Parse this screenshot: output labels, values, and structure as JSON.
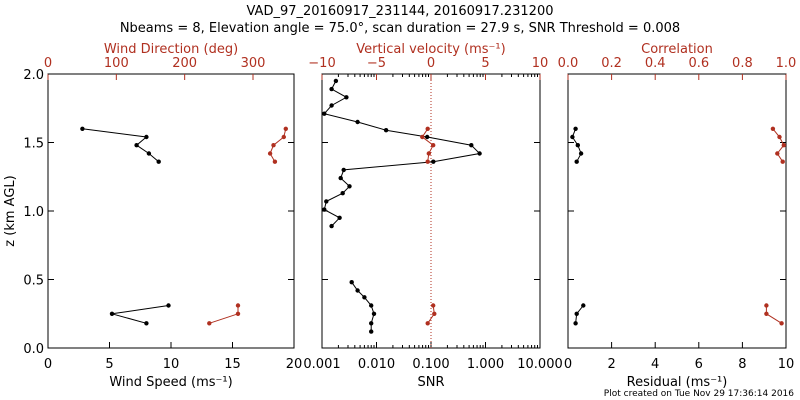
{
  "header": {
    "title": "VAD_97_20160917_231144, 20160917.231200",
    "subtitle": "Nbeams = 8, Elevation angle = 75.0°, scan duration = 27.9 s, SNR Threshold = 0.008"
  },
  "footer": {
    "text": "Plot created on Tue Nov 29 17:36:14 2016"
  },
  "colors": {
    "black": "#000000",
    "red": "#b03020"
  },
  "y_axis": {
    "label": "z (km AGL)",
    "range": [
      0.0,
      2.0
    ],
    "ticks": [
      "0.0",
      "0.5",
      "1.0",
      "1.5",
      "2.0"
    ]
  },
  "chart_data": [
    {
      "type": "line",
      "panel": "left",
      "xlabel": "Wind Speed",
      "xlabel_unit": "(ms⁻¹)",
      "xlim": [
        0,
        20
      ],
      "xticks": [
        "0",
        "5",
        "10",
        "15",
        "20"
      ],
      "top_xlabel": "Wind Direction (deg)",
      "top_xlim": [
        0,
        360
      ],
      "top_xticks": [
        "0",
        "100",
        "200",
        "300"
      ],
      "series": [
        {
          "axis": "bottom",
          "color": "black",
          "z": [
            1.6,
            1.54,
            1.48,
            1.42,
            1.36
          ],
          "x": [
            2.8,
            8.0,
            7.2,
            8.2,
            9.0
          ]
        },
        {
          "axis": "bottom",
          "color": "black",
          "z": [
            0.31,
            0.25,
            0.18
          ],
          "x": [
            9.8,
            5.2,
            8.0
          ]
        },
        {
          "axis": "top",
          "color": "red",
          "z": [
            1.6,
            1.54,
            1.48,
            1.42,
            1.36
          ],
          "x": [
            348,
            345,
            330,
            325,
            332
          ]
        },
        {
          "axis": "top",
          "color": "red",
          "z": [
            0.31,
            0.25,
            0.18
          ],
          "x": [
            278,
            278,
            236
          ]
        }
      ]
    },
    {
      "type": "line",
      "panel": "middle",
      "xlabel": "SNR",
      "xscale": "log",
      "xlim": [
        0.001,
        10.0
      ],
      "xticks": [
        "0.001",
        "0.010",
        "0.100",
        "1.000",
        "10.000"
      ],
      "top_xlabel": "Vertical velocity",
      "top_xlabel_unit": "(ms⁻¹)",
      "top_xlim": [
        -10,
        10
      ],
      "top_xticks": [
        "−10",
        "−5",
        "0",
        "5",
        "10"
      ],
      "reference_line": {
        "axis": "top",
        "value": 0,
        "style": "dotted",
        "color": "red"
      },
      "series": [
        {
          "axis": "bottom",
          "color": "black",
          "z": [
            1.95,
            1.89,
            1.83,
            1.77,
            1.71,
            1.65,
            1.59,
            1.54,
            1.48,
            1.42,
            1.36,
            1.3,
            1.24,
            1.18,
            1.13,
            1.07,
            1.01,
            0.95,
            0.89
          ],
          "x": [
            0.0018,
            0.0015,
            0.0028,
            0.0015,
            0.0011,
            0.0045,
            0.015,
            0.085,
            0.55,
            0.78,
            0.11,
            0.0025,
            0.0022,
            0.0032,
            0.0024,
            0.0012,
            0.0011,
            0.0021,
            0.0015
          ]
        },
        {
          "axis": "bottom",
          "color": "black",
          "z": [
            0.48,
            0.42,
            0.37,
            0.31,
            0.25,
            0.18,
            0.12
          ],
          "x": [
            0.0035,
            0.0045,
            0.006,
            0.008,
            0.009,
            0.008,
            0.008
          ]
        },
        {
          "axis": "top",
          "color": "red",
          "z": [
            1.6,
            1.54,
            1.48,
            1.42,
            1.36
          ],
          "x": [
            -0.3,
            -0.8,
            0.2,
            -0.2,
            -0.3
          ]
        },
        {
          "axis": "top",
          "color": "red",
          "z": [
            0.31,
            0.25,
            0.18
          ],
          "x": [
            0.2,
            0.3,
            -0.3
          ]
        }
      ]
    },
    {
      "type": "line",
      "panel": "right",
      "xlabel": "Residual",
      "xlabel_unit": "(ms⁻¹)",
      "xlim": [
        0,
        10
      ],
      "xticks": [
        "0",
        "2",
        "4",
        "6",
        "8",
        "10"
      ],
      "top_xlabel": "Correlation",
      "top_xlim": [
        0.0,
        1.0
      ],
      "top_xticks": [
        "0.0",
        "0.2",
        "0.4",
        "0.6",
        "0.8",
        "1.0"
      ],
      "series": [
        {
          "axis": "bottom",
          "color": "black",
          "z": [
            1.6,
            1.54,
            1.48,
            1.42,
            1.36
          ],
          "x": [
            0.35,
            0.2,
            0.45,
            0.6,
            0.4
          ]
        },
        {
          "axis": "bottom",
          "color": "black",
          "z": [
            0.31,
            0.25,
            0.18
          ],
          "x": [
            0.7,
            0.4,
            0.35
          ]
        },
        {
          "axis": "top",
          "color": "red",
          "z": [
            1.6,
            1.54,
            1.48,
            1.42,
            1.36
          ],
          "x": [
            0.94,
            0.97,
            0.99,
            0.96,
            0.985
          ]
        },
        {
          "axis": "top",
          "color": "red",
          "z": [
            0.31,
            0.25,
            0.18
          ],
          "x": [
            0.91,
            0.91,
            0.98
          ]
        }
      ]
    }
  ]
}
